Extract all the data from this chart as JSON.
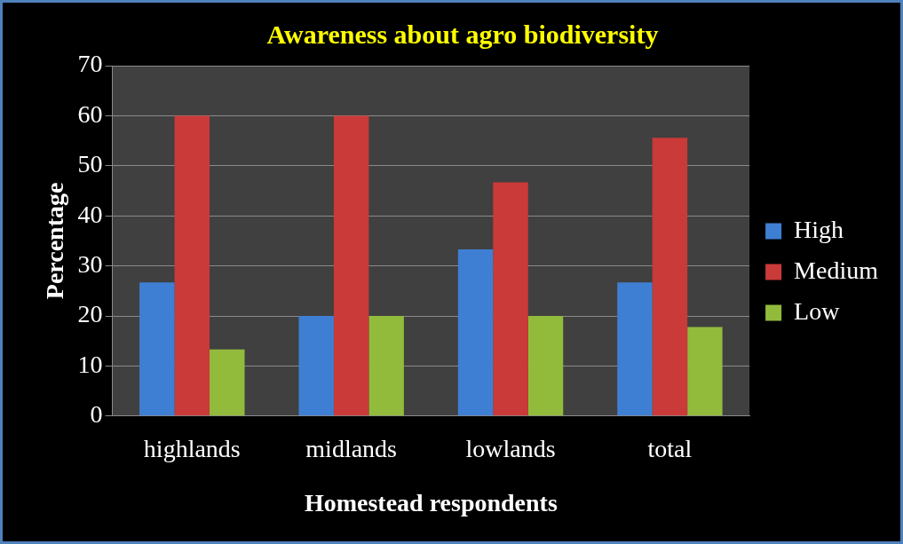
{
  "chart_data": {
    "type": "bar",
    "title": "Awareness about agro biodiversity",
    "xlabel": "Homestead respondents",
    "ylabel": "Percentage",
    "categories": [
      "highlands",
      "midlands",
      "lowlands",
      "total"
    ],
    "series": [
      {
        "name": "High",
        "color": "#3f7fd3",
        "values": [
          26.7,
          20,
          33.3,
          26.7
        ]
      },
      {
        "name": "Medium",
        "color": "#c93a38",
        "values": [
          60,
          60,
          46.7,
          55.6
        ]
      },
      {
        "name": "Low",
        "color": "#92bb3c",
        "values": [
          13.3,
          20,
          20,
          17.8
        ]
      }
    ],
    "ylim": [
      0,
      70
    ],
    "yticks": [
      0,
      10,
      20,
      30,
      40,
      50,
      60,
      70
    ],
    "grid": "y",
    "legend": "right"
  }
}
